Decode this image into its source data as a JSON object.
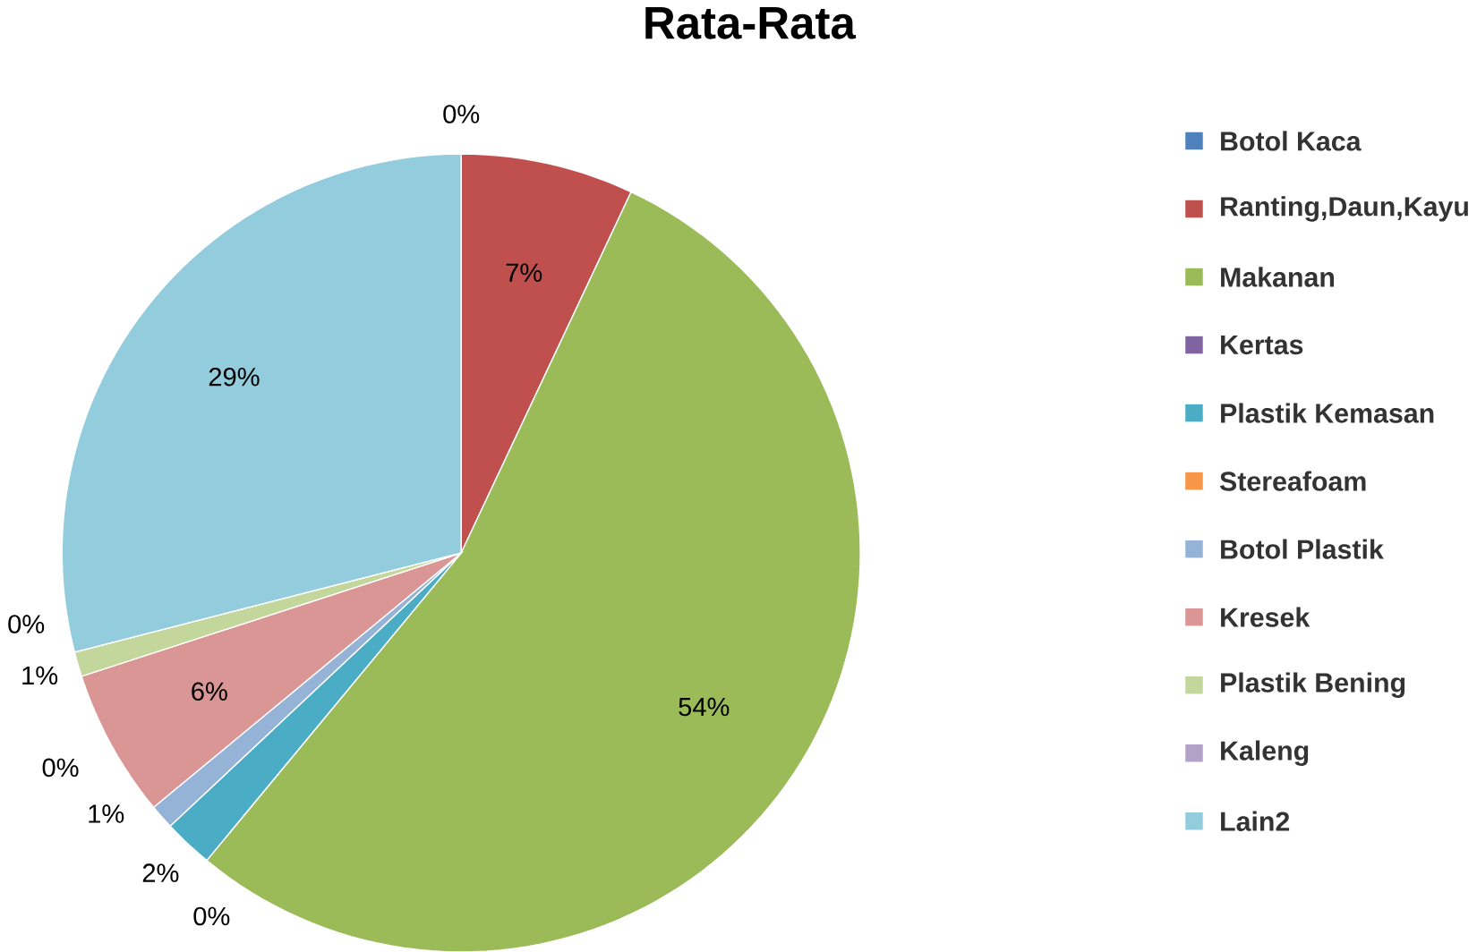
{
  "chart_data": {
    "type": "pie",
    "title": "Rata-Rata",
    "categories": [
      "Botol Kaca",
      "Ranting,Daun,Kayu",
      "Makanan",
      "Kertas",
      "Plastik Kemasan",
      "Stereafoam",
      "Botol Plastik",
      "Kresek",
      "Plastik Bening",
      "Kaleng",
      "Lain2"
    ],
    "values": [
      0,
      7,
      54,
      0,
      2,
      0,
      1,
      6,
      1,
      0,
      29
    ],
    "colors": [
      "#4f81bd",
      "#c0504d",
      "#9bbb59",
      "#8064a2",
      "#4bacc6",
      "#f79646",
      "#95b3d7",
      "#d99694",
      "#c3d69b",
      "#b3a2c7",
      "#93cddd"
    ],
    "value_labels": [
      "0%",
      "7%",
      "54%",
      "0%",
      "2%",
      "0%",
      "1%",
      "6%",
      "1%",
      "0%",
      "29%"
    ],
    "legend": "right"
  }
}
